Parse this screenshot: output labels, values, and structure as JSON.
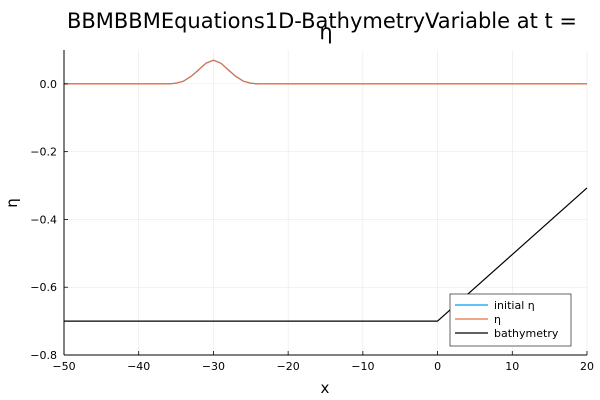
{
  "chart_data": {
    "type": "line",
    "title_lines": [
      "BBMBBMEquations1D-BathymetryVariable at t =",
      "η"
    ],
    "xlabel": "x",
    "ylabel": "η",
    "xlim": [
      -50,
      20
    ],
    "ylim": [
      -0.8,
      0.1
    ],
    "x_ticks": [
      -50,
      -40,
      -30,
      -20,
      -10,
      0,
      10,
      20
    ],
    "x_tick_labels": [
      "−50",
      "−40",
      "−30",
      "−20",
      "−10",
      "0",
      "10",
      "20"
    ],
    "y_ticks": [
      0.0,
      -0.2,
      -0.4,
      -0.6,
      -0.8
    ],
    "y_tick_labels": [
      "0.0",
      "−0.2",
      "−0.4",
      "−0.6",
      "−0.8"
    ],
    "grid": true,
    "legend_position": "bottom-right",
    "series": [
      {
        "name": "initial η",
        "color": "#009af9",
        "x": [
          -50,
          -40,
          -36,
          -35,
          -34,
          -33,
          -32,
          -31,
          -30,
          -29,
          -28,
          -27,
          -26,
          -25,
          -24,
          -20,
          0,
          20
        ],
        "y": [
          0.0,
          0.0,
          0.0,
          0.002,
          0.008,
          0.022,
          0.041,
          0.061,
          0.07,
          0.061,
          0.041,
          0.022,
          0.008,
          0.002,
          0.0,
          0.0,
          0.0,
          0.0
        ]
      },
      {
        "name": "η",
        "color": "#e26f46",
        "x": [
          -50,
          -40,
          -36,
          -35,
          -34,
          -33,
          -32,
          -31,
          -30,
          -29,
          -28,
          -27,
          -26,
          -25,
          -24,
          -20,
          0,
          20
        ],
        "y": [
          0.0,
          0.0,
          0.0,
          0.002,
          0.008,
          0.022,
          0.041,
          0.061,
          0.07,
          0.061,
          0.041,
          0.022,
          0.008,
          0.002,
          0.0,
          0.0,
          0.0,
          0.0
        ]
      },
      {
        "name": "bathymetry",
        "color": "#000000",
        "x": [
          -50,
          0,
          20
        ],
        "y": [
          -0.7,
          -0.7,
          -0.307
        ]
      }
    ]
  }
}
